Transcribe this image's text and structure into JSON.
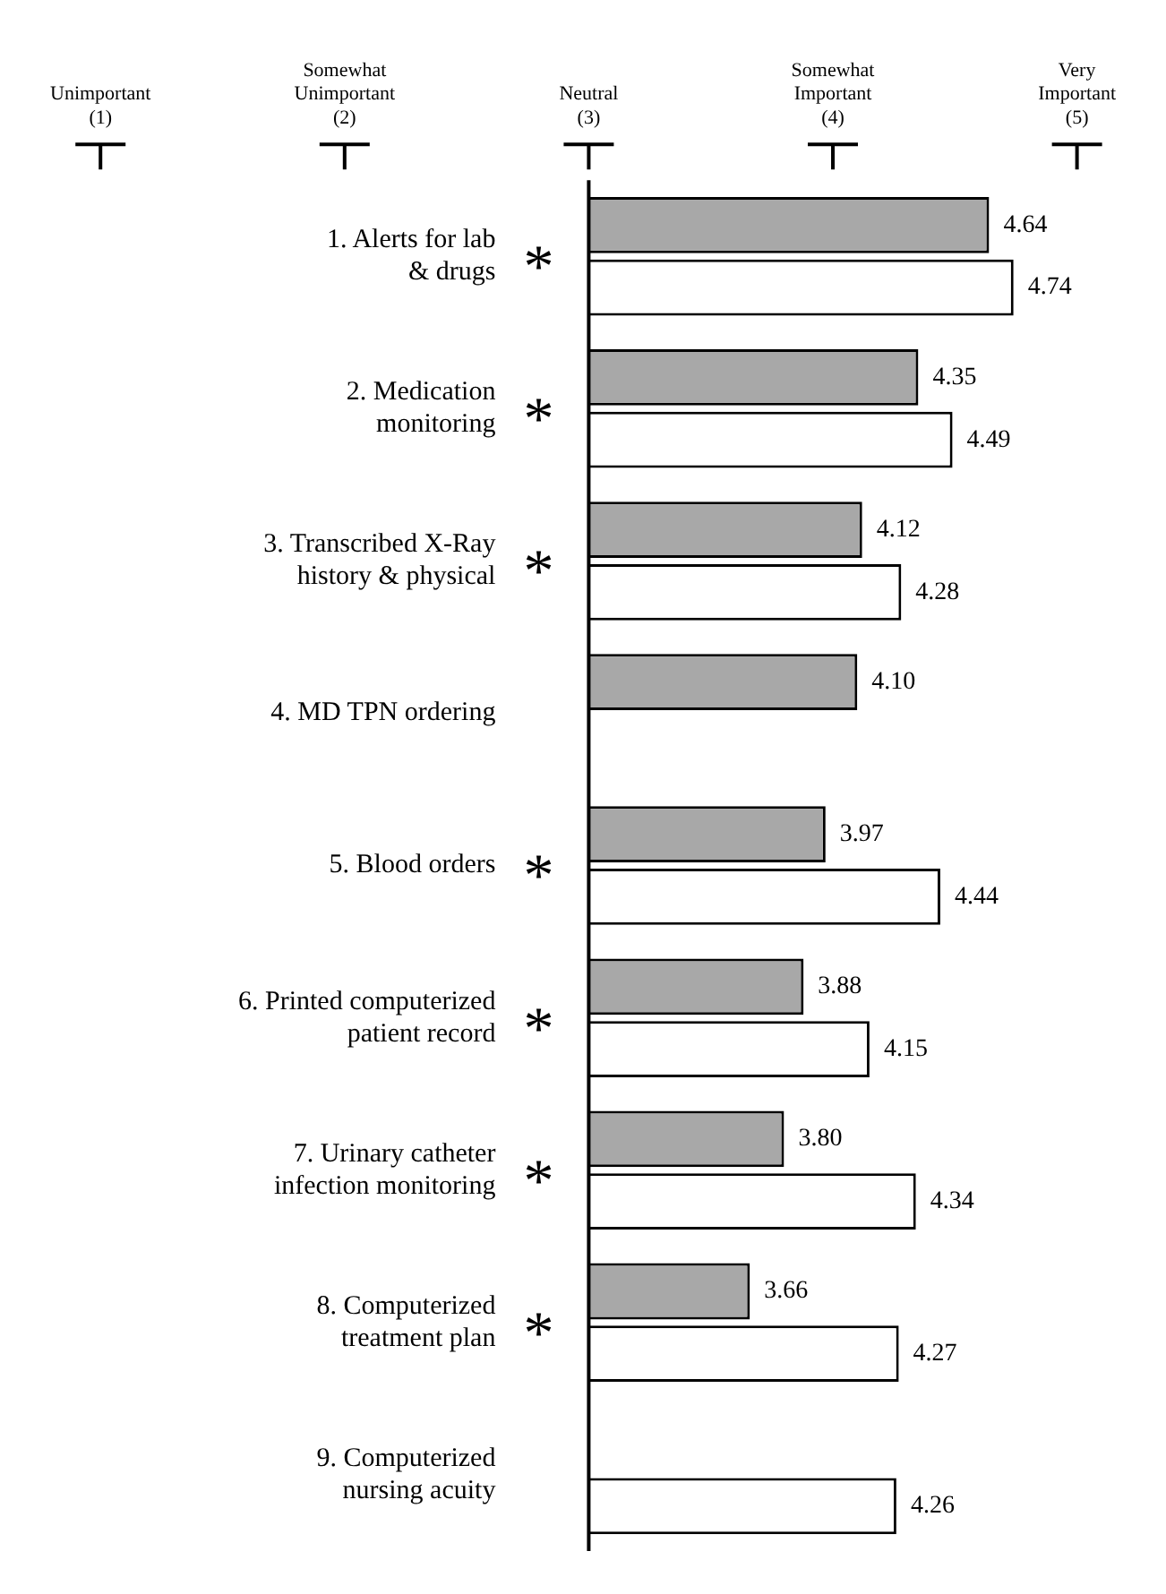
{
  "chart_data": {
    "type": "bar",
    "orientation": "horizontal",
    "categories": [
      "1. Alerts for lab\n& drugs",
      "2. Medication\nmonitoring",
      "3. Transcribed X-Ray\nhistory & physical",
      "4. MD TPN ordering",
      "5. Blood orders",
      "6. Printed computerized\npatient record",
      "7. Urinary catheter\ninfection monitoring",
      "8. Computerized\ntreatment plan",
      "9. Computerized\nnursing acuity"
    ],
    "series": [
      {
        "color": "#a8a8a8",
        "base": [
          3,
          3,
          3,
          3,
          3,
          3,
          3,
          3,
          null
        ],
        "values": [
          1.64,
          1.35,
          1.12,
          1.1,
          0.97,
          0.88,
          0.8,
          0.66,
          null
        ],
        "value_labels": [
          "4.64",
          "4.35",
          "4.12",
          "4.10",
          "3.97",
          "3.88",
          "3.80",
          "3.66",
          null
        ]
      },
      {
        "color": "#ffffff",
        "base": [
          3,
          3,
          3,
          null,
          3,
          3,
          3,
          3,
          3
        ],
        "values": [
          1.74,
          1.49,
          1.28,
          null,
          1.44,
          1.15,
          1.34,
          1.27,
          1.26
        ],
        "value_labels": [
          "4.74",
          "4.49",
          "4.28",
          null,
          "4.44",
          "4.15",
          "4.34",
          "4.27",
          "4.26"
        ]
      }
    ],
    "xlim": [
      1,
      5
    ],
    "xticks": [
      {
        "value": 1,
        "label": "Unimportant\n(1)"
      },
      {
        "value": 2,
        "label": "Somewhat\nUnimportant\n(2)"
      },
      {
        "value": 3,
        "label": "Neutral\n(3)"
      },
      {
        "value": 4,
        "label": "Somewhat\nImportant\n(4)"
      },
      {
        "value": 5,
        "label": "Very\nImportant\n(5)"
      }
    ],
    "annotations": [
      "*",
      "*",
      "*",
      "*",
      "*",
      "*",
      "*"
    ],
    "ref_lines": [
      {
        "axis": "x",
        "value": 3,
        "color": "#000000"
      }
    ],
    "grid": false,
    "legend": false
  }
}
